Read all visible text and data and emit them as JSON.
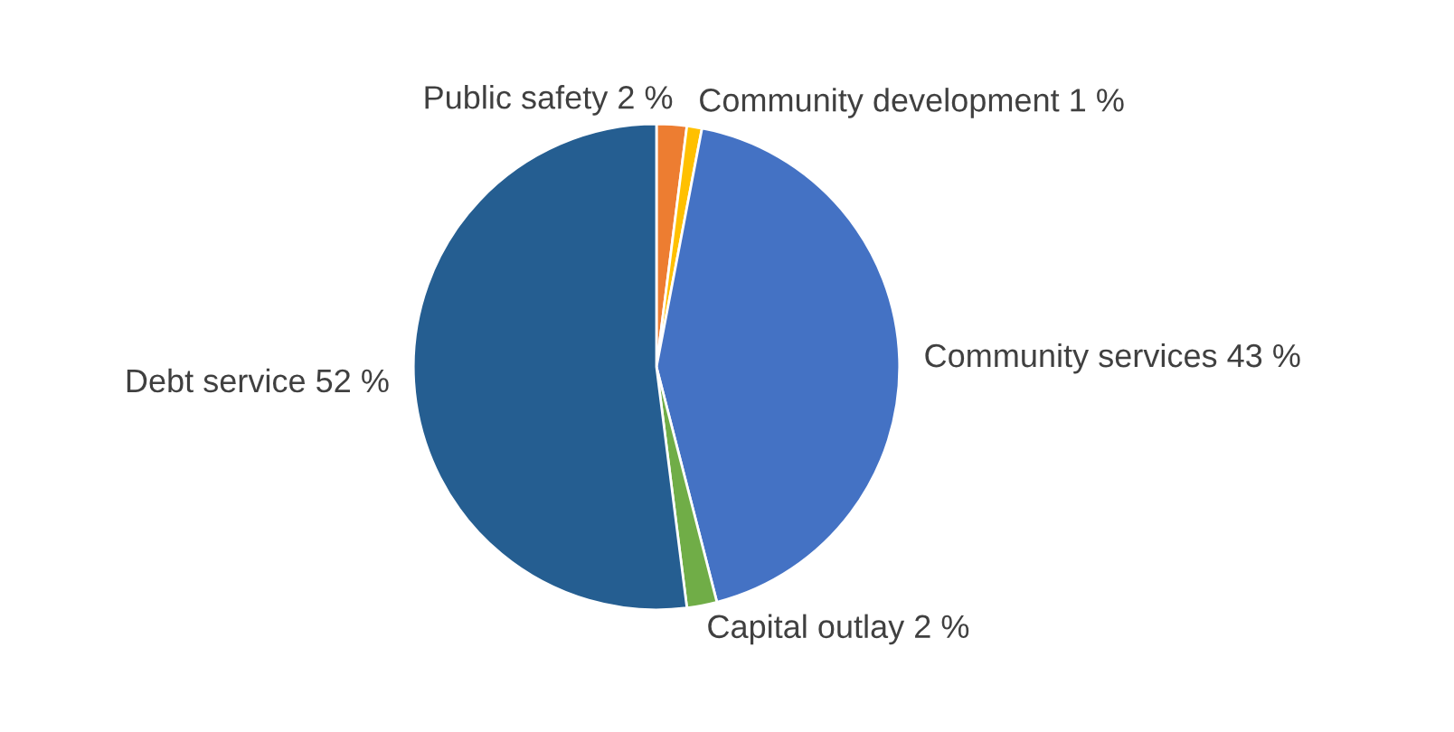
{
  "chart_data": {
    "type": "pie",
    "categories": [
      "Public safety",
      "Community development",
      "Community services",
      "Capital outlay",
      "Debt service"
    ],
    "values": [
      2,
      1,
      43,
      2,
      52
    ],
    "value_labels": [
      "2 %",
      "1 %",
      "43 %",
      "2 %",
      "52 %"
    ],
    "colors": [
      "#ed7d31",
      "#ffc000",
      "#4472c4",
      "#70ad47",
      "#255e91"
    ],
    "legend": false
  }
}
